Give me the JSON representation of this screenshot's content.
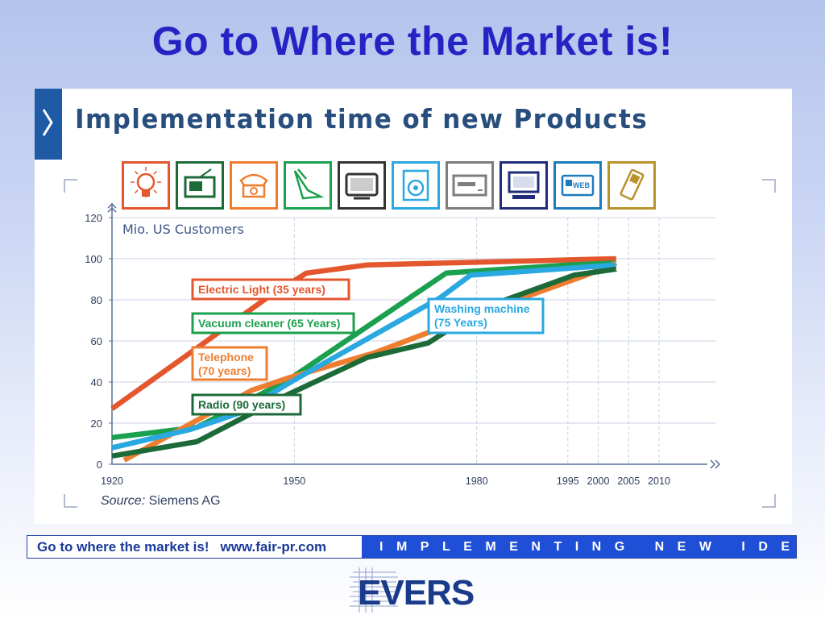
{
  "slide": {
    "title": "Go to Where the Market is!"
  },
  "panel": {
    "heading": "Implementation time of new Products",
    "icons": [
      {
        "name": "light-bulb-icon",
        "color": "#e4562d"
      },
      {
        "name": "radio-icon",
        "color": "#1d6a39"
      },
      {
        "name": "telephone-icon",
        "color": "#ee7d2f"
      },
      {
        "name": "vacuum-cleaner-icon",
        "color": "#1aa04e"
      },
      {
        "name": "television-icon",
        "color": "#333333"
      },
      {
        "name": "washing-machine-icon",
        "color": "#2aa8e0"
      },
      {
        "name": "vcr-icon",
        "color": "#7d7d7d"
      },
      {
        "name": "computer-icon",
        "color": "#1f2c7a"
      },
      {
        "name": "web-icon",
        "color": "#1c7bbf"
      },
      {
        "name": "mobile-phone-icon",
        "color": "#b8922a"
      }
    ]
  },
  "chart_data": {
    "type": "line",
    "ylabel": "Mio. US Customers",
    "xlim": [
      1920,
      2010
    ],
    "ylim": [
      0,
      120
    ],
    "x_ticks": [
      "1920",
      "1950",
      "1980",
      "1995",
      "2000",
      "2005",
      "2010"
    ],
    "y_ticks": [
      "0",
      "20",
      "40",
      "60",
      "80",
      "100",
      "120"
    ],
    "source_label": "Source:",
    "source_value": "Siemens AG",
    "series": [
      {
        "name": "Electric Light (35 years)",
        "color": "#e4562d",
        "points": [
          [
            1920,
            27
          ],
          [
            1946,
            82
          ],
          [
            1952,
            93
          ],
          [
            1962,
            97
          ],
          [
            2003,
            100
          ]
        ]
      },
      {
        "name": "Vacuum cleaner (65 Years)",
        "color": "#1aa04e",
        "points": [
          [
            1920,
            13
          ],
          [
            1934,
            18
          ],
          [
            1949,
            41
          ],
          [
            1975,
            93
          ],
          [
            1995,
            97
          ],
          [
            2003,
            98
          ]
        ]
      },
      {
        "name": "Telephone\n(70 years)",
        "color": "#ee7d2f",
        "points": [
          [
            1922,
            2
          ],
          [
            1943,
            36
          ],
          [
            1949,
            42
          ],
          [
            1963,
            54
          ],
          [
            1980,
            73
          ],
          [
            1998,
            92
          ],
          [
            2003,
            98
          ]
        ]
      },
      {
        "name": "Washing machine\n(75 Years)",
        "color": "#2aa8e0",
        "points": [
          [
            1920,
            8
          ],
          [
            1933,
            17
          ],
          [
            1941,
            25
          ],
          [
            1950,
            41
          ],
          [
            1974,
            81
          ],
          [
            1979,
            92
          ],
          [
            2003,
            97
          ]
        ]
      },
      {
        "name": "Radio (90 years)",
        "color": "#1d6a39",
        "points": [
          [
            1920,
            4
          ],
          [
            1934,
            11
          ],
          [
            1949,
            34
          ],
          [
            1962,
            52
          ],
          [
            1972,
            59
          ],
          [
            1981,
            76
          ],
          [
            1996,
            92
          ],
          [
            2003,
            95
          ]
        ]
      }
    ],
    "label_boxes": [
      {
        "series": 0,
        "lines": [
          "Electric Light (35 years)"
        ]
      },
      {
        "series": 1,
        "lines": [
          "Vacuum cleaner (65 Years)"
        ]
      },
      {
        "series": 2,
        "lines": [
          "Telephone",
          "(70 years)"
        ]
      },
      {
        "series": 3,
        "lines": [
          "Washing machine",
          "(75 Years)"
        ]
      },
      {
        "series": 4,
        "lines": [
          "Radio (90 years)"
        ]
      }
    ]
  },
  "footer": {
    "left_text": "Go to where the market is!",
    "url": "www.fair-pr.com",
    "right_text": "IMPLEMENTING NEW IDEAS"
  },
  "logo": {
    "text": "EVERS",
    "color": "#1a3a8a"
  }
}
